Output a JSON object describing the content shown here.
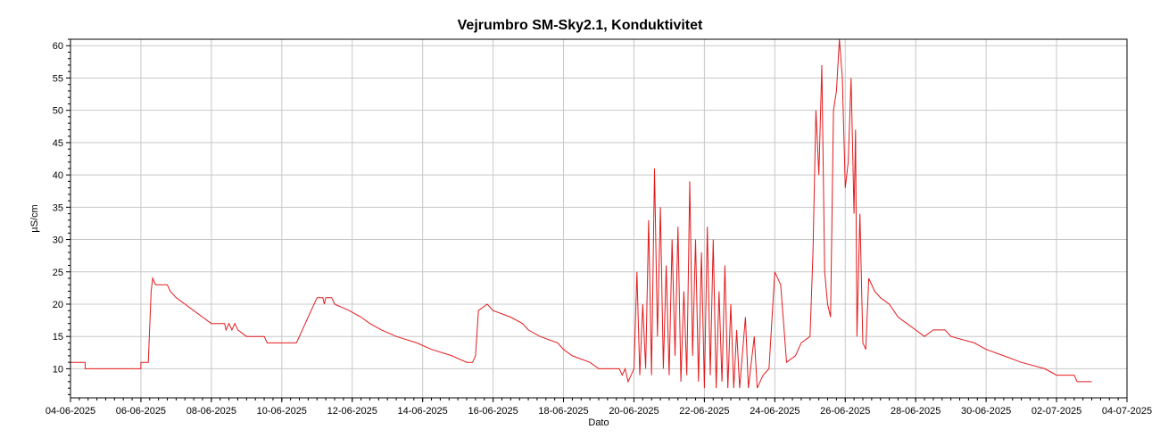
{
  "chart_data": {
    "type": "line",
    "title": "Vejrumbro SM-Sky2.1, Konduktivitet",
    "xlabel": "Dato",
    "ylabel": "µS/cm",
    "xlim": [
      "2025-06-04",
      "2025-07-04"
    ],
    "ylim": [
      5.5,
      61
    ],
    "grid": true,
    "legend": "none",
    "line_color": "#e31a1c",
    "x_ticks": [
      "04-06-2025",
      "06-06-2025",
      "08-06-2025",
      "10-06-2025",
      "12-06-2025",
      "14-06-2025",
      "16-06-2025",
      "18-06-2025",
      "20-06-2025",
      "22-06-2025",
      "24-06-2025",
      "26-06-2025",
      "28-06-2025",
      "30-06-2025",
      "02-07-2025",
      "04-07-2025"
    ],
    "y_ticks": [
      10,
      15,
      20,
      25,
      30,
      35,
      40,
      45,
      50,
      55,
      60
    ],
    "series": [
      {
        "points": [
          [
            "2025-06-04T00:00",
            11
          ],
          [
            "2025-06-04T10:00",
            11
          ],
          [
            "2025-06-04T10:00",
            10
          ],
          [
            "2025-06-06T00:00",
            10
          ],
          [
            "2025-06-06T00:00",
            11
          ],
          [
            "2025-06-06T05:00",
            11
          ],
          [
            "2025-06-06T07:00",
            22
          ],
          [
            "2025-06-06T08:00",
            24
          ],
          [
            "2025-06-06T10:00",
            23
          ],
          [
            "2025-06-06T18:00",
            23
          ],
          [
            "2025-06-06T20:00",
            22
          ],
          [
            "2025-06-07T00:00",
            21
          ],
          [
            "2025-06-07T06:00",
            20
          ],
          [
            "2025-06-07T12:00",
            19
          ],
          [
            "2025-06-07T18:00",
            18
          ],
          [
            "2025-06-08T00:00",
            17
          ],
          [
            "2025-06-08T09:00",
            17
          ],
          [
            "2025-06-08T10:00",
            16
          ],
          [
            "2025-06-08T12:00",
            17
          ],
          [
            "2025-06-08T14:00",
            16
          ],
          [
            "2025-06-08T16:00",
            17
          ],
          [
            "2025-06-08T18:00",
            16
          ],
          [
            "2025-06-09T00:00",
            15
          ],
          [
            "2025-06-09T12:00",
            15
          ],
          [
            "2025-06-09T14:00",
            14
          ],
          [
            "2025-06-10T06:00",
            14
          ],
          [
            "2025-06-10T10:00",
            14
          ],
          [
            "2025-06-10T16:00",
            17
          ],
          [
            "2025-06-10T20:00",
            19
          ],
          [
            "2025-06-11T00:00",
            21
          ],
          [
            "2025-06-11T04:00",
            21
          ],
          [
            "2025-06-11T05:00",
            20
          ],
          [
            "2025-06-11T06:00",
            21
          ],
          [
            "2025-06-11T10:00",
            21
          ],
          [
            "2025-06-11T12:00",
            20
          ],
          [
            "2025-06-11T22:00",
            19
          ],
          [
            "2025-06-12T06:00",
            18
          ],
          [
            "2025-06-12T12:00",
            17
          ],
          [
            "2025-06-12T20:00",
            16
          ],
          [
            "2025-06-13T06:00",
            15
          ],
          [
            "2025-06-13T20:00",
            14
          ],
          [
            "2025-06-14T06:00",
            13
          ],
          [
            "2025-06-14T20:00",
            12
          ],
          [
            "2025-06-15T06:00",
            11
          ],
          [
            "2025-06-15T10:00",
            11
          ],
          [
            "2025-06-15T12:00",
            12
          ],
          [
            "2025-06-15T14:00",
            19
          ],
          [
            "2025-06-15T20:00",
            20
          ],
          [
            "2025-06-16T00:00",
            19
          ],
          [
            "2025-06-16T12:00",
            18
          ],
          [
            "2025-06-16T20:00",
            17
          ],
          [
            "2025-06-17T00:00",
            16
          ],
          [
            "2025-06-17T08:00",
            15
          ],
          [
            "2025-06-17T20:00",
            14
          ],
          [
            "2025-06-18T00:00",
            13
          ],
          [
            "2025-06-18T06:00",
            12
          ],
          [
            "2025-06-18T18:00",
            11
          ],
          [
            "2025-06-19T00:00",
            10
          ],
          [
            "2025-06-19T14:00",
            10
          ],
          [
            "2025-06-19T16:00",
            9
          ],
          [
            "2025-06-19T18:00",
            10
          ],
          [
            "2025-06-19T20:00",
            8
          ],
          [
            "2025-06-20T00:00",
            10
          ],
          [
            "2025-06-20T02:00",
            25
          ],
          [
            "2025-06-20T04:00",
            9
          ],
          [
            "2025-06-20T06:00",
            20
          ],
          [
            "2025-06-20T08:00",
            10
          ],
          [
            "2025-06-20T10:00",
            33
          ],
          [
            "2025-06-20T12:00",
            9
          ],
          [
            "2025-06-20T14:00",
            41
          ],
          [
            "2025-06-20T16:00",
            15
          ],
          [
            "2025-06-20T18:00",
            35
          ],
          [
            "2025-06-20T20:00",
            10
          ],
          [
            "2025-06-20T22:00",
            26
          ],
          [
            "2025-06-21T00:00",
            9
          ],
          [
            "2025-06-21T02:00",
            30
          ],
          [
            "2025-06-21T04:00",
            12
          ],
          [
            "2025-06-21T06:00",
            32
          ],
          [
            "2025-06-21T08:00",
            8
          ],
          [
            "2025-06-21T10:00",
            22
          ],
          [
            "2025-06-21T12:00",
            9
          ],
          [
            "2025-06-21T14:00",
            39
          ],
          [
            "2025-06-21T16:00",
            12
          ],
          [
            "2025-06-21T18:00",
            30
          ],
          [
            "2025-06-21T20:00",
            8
          ],
          [
            "2025-06-21T22:00",
            28
          ],
          [
            "2025-06-22T00:00",
            7
          ],
          [
            "2025-06-22T02:00",
            32
          ],
          [
            "2025-06-22T04:00",
            9
          ],
          [
            "2025-06-22T06:00",
            30
          ],
          [
            "2025-06-22T08:00",
            7
          ],
          [
            "2025-06-22T10:00",
            22
          ],
          [
            "2025-06-22T12:00",
            8
          ],
          [
            "2025-06-22T14:00",
            26
          ],
          [
            "2025-06-22T16:00",
            7
          ],
          [
            "2025-06-22T18:00",
            20
          ],
          [
            "2025-06-22T20:00",
            7
          ],
          [
            "2025-06-22T22:00",
            16
          ],
          [
            "2025-06-23T00:00",
            7
          ],
          [
            "2025-06-23T04:00",
            18
          ],
          [
            "2025-06-23T06:00",
            7
          ],
          [
            "2025-06-23T10:00",
            15
          ],
          [
            "2025-06-23T12:00",
            7
          ],
          [
            "2025-06-23T16:00",
            9
          ],
          [
            "2025-06-23T20:00",
            10
          ],
          [
            "2025-06-24T00:00",
            25
          ],
          [
            "2025-06-24T04:00",
            23
          ],
          [
            "2025-06-24T08:00",
            11
          ],
          [
            "2025-06-24T14:00",
            12
          ],
          [
            "2025-06-24T18:00",
            14
          ],
          [
            "2025-06-25T00:00",
            15
          ],
          [
            "2025-06-25T02:00",
            28
          ],
          [
            "2025-06-25T04:00",
            50
          ],
          [
            "2025-06-25T06:00",
            40
          ],
          [
            "2025-06-25T08:00",
            57
          ],
          [
            "2025-06-25T10:00",
            25
          ],
          [
            "2025-06-25T12:00",
            20
          ],
          [
            "2025-06-25T14:00",
            18
          ],
          [
            "2025-06-25T16:00",
            50
          ],
          [
            "2025-06-25T18:00",
            53
          ],
          [
            "2025-06-25T20:00",
            61
          ],
          [
            "2025-06-25T22:00",
            55
          ],
          [
            "2025-06-26T00:00",
            38
          ],
          [
            "2025-06-26T02:00",
            42
          ],
          [
            "2025-06-26T04:00",
            55
          ],
          [
            "2025-06-26T06:00",
            34
          ],
          [
            "2025-06-26T07:00",
            47
          ],
          [
            "2025-06-26T08:00",
            15
          ],
          [
            "2025-06-26T10:00",
            34
          ],
          [
            "2025-06-26T12:00",
            14
          ],
          [
            "2025-06-26T14:00",
            13
          ],
          [
            "2025-06-26T16:00",
            24
          ],
          [
            "2025-06-26T20:00",
            22
          ],
          [
            "2025-06-27T00:00",
            21
          ],
          [
            "2025-06-27T06:00",
            20
          ],
          [
            "2025-06-27T12:00",
            18
          ],
          [
            "2025-06-27T18:00",
            17
          ],
          [
            "2025-06-28T00:00",
            16
          ],
          [
            "2025-06-28T06:00",
            15
          ],
          [
            "2025-06-28T12:00",
            16
          ],
          [
            "2025-06-28T20:00",
            16
          ],
          [
            "2025-06-29T00:00",
            15
          ],
          [
            "2025-06-29T16:00",
            14
          ],
          [
            "2025-06-30T00:00",
            13
          ],
          [
            "2025-06-30T12:00",
            12
          ],
          [
            "2025-07-01T00:00",
            11
          ],
          [
            "2025-07-01T16:00",
            10
          ],
          [
            "2025-07-02T00:00",
            9
          ],
          [
            "2025-07-02T12:00",
            9
          ],
          [
            "2025-07-02T14:00",
            8
          ],
          [
            "2025-07-03T00:00",
            8
          ]
        ]
      }
    ]
  }
}
